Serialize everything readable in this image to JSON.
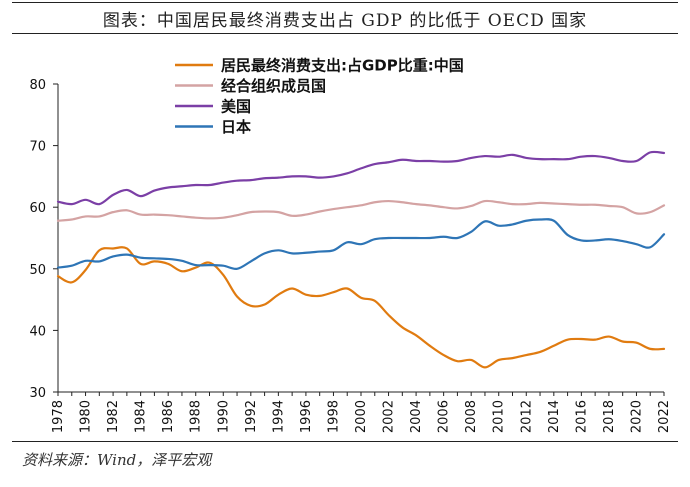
{
  "title": "图表：中国居民最终消费支出占 GDP 的比低于 OECD 国家",
  "source": "资料来源：Wind，泽平宏观",
  "chart_data": {
    "type": "line",
    "title": "图表：中国居民最终消费支出占 GDP 的比低于 OECD 国家",
    "xlabel": "",
    "ylabel": "",
    "ylim": [
      30,
      80
    ],
    "yticks": [
      30,
      40,
      50,
      60,
      70,
      80
    ],
    "xlim": [
      1978,
      2022
    ],
    "xticks": [
      1978,
      1980,
      1982,
      1984,
      1986,
      1988,
      1990,
      1992,
      1994,
      1996,
      1998,
      2000,
      2002,
      2004,
      2006,
      2008,
      2010,
      2012,
      2014,
      2016,
      2018,
      2020,
      2022
    ],
    "legend_position": "top-center",
    "x": [
      1978,
      1979,
      1980,
      1981,
      1982,
      1983,
      1984,
      1985,
      1986,
      1987,
      1988,
      1989,
      1990,
      1991,
      1992,
      1993,
      1994,
      1995,
      1996,
      1997,
      1998,
      1999,
      2000,
      2001,
      2002,
      2003,
      2004,
      2005,
      2006,
      2007,
      2008,
      2009,
      2010,
      2011,
      2012,
      2013,
      2014,
      2015,
      2016,
      2017,
      2018,
      2019,
      2020,
      2021,
      2022
    ],
    "series": [
      {
        "name": "居民最终消费支出:占GDP比重:中国",
        "color": "#E07B10",
        "values": [
          48.8,
          47.8,
          49.8,
          53.0,
          53.3,
          53.3,
          50.8,
          51.2,
          50.8,
          49.6,
          50.2,
          51.0,
          49.0,
          45.5,
          44.0,
          44.2,
          45.8,
          46.8,
          45.8,
          45.6,
          46.2,
          46.8,
          45.3,
          44.8,
          42.5,
          40.5,
          39.2,
          37.5,
          36.0,
          35.0,
          35.2,
          34.0,
          35.2,
          35.5,
          36.0,
          36.5,
          37.5,
          38.5,
          38.6,
          38.5,
          39.0,
          38.2,
          38.0,
          37.0,
          37.0
        ]
      },
      {
        "name": "经合组织成员国",
        "color": "#D4A3A3",
        "values": [
          57.8,
          58.0,
          58.5,
          58.5,
          59.2,
          59.5,
          58.8,
          58.8,
          58.7,
          58.5,
          58.3,
          58.2,
          58.3,
          58.7,
          59.2,
          59.3,
          59.2,
          58.6,
          58.8,
          59.3,
          59.7,
          60.0,
          60.3,
          60.8,
          61.0,
          60.8,
          60.5,
          60.3,
          60.0,
          59.8,
          60.2,
          61.0,
          60.8,
          60.5,
          60.5,
          60.7,
          60.6,
          60.5,
          60.4,
          60.4,
          60.2,
          60.0,
          59.0,
          59.2,
          60.3
        ]
      },
      {
        "name": "美国",
        "color": "#7B3FA6",
        "values": [
          60.9,
          60.5,
          61.2,
          60.5,
          62.0,
          62.8,
          61.8,
          62.7,
          63.2,
          63.4,
          63.6,
          63.6,
          64.0,
          64.3,
          64.4,
          64.7,
          64.8,
          65.0,
          65.0,
          64.8,
          65.0,
          65.5,
          66.3,
          67.0,
          67.3,
          67.7,
          67.5,
          67.5,
          67.4,
          67.5,
          68.0,
          68.3,
          68.2,
          68.5,
          68.0,
          67.8,
          67.8,
          67.8,
          68.2,
          68.3,
          68.0,
          67.5,
          67.5,
          68.9,
          68.8
        ]
      },
      {
        "name": "日本",
        "color": "#2E75B6",
        "values": [
          50.2,
          50.5,
          51.3,
          51.2,
          52.0,
          52.3,
          51.8,
          51.7,
          51.6,
          51.3,
          50.6,
          50.6,
          50.5,
          50.0,
          51.2,
          52.5,
          53.0,
          52.5,
          52.6,
          52.8,
          53.0,
          54.3,
          54.0,
          54.8,
          55.0,
          55.0,
          55.0,
          55.0,
          55.2,
          55.0,
          56.0,
          57.7,
          57.0,
          57.2,
          57.8,
          58.0,
          57.8,
          55.5,
          54.6,
          54.6,
          54.8,
          54.5,
          54.0,
          53.5,
          55.6
        ]
      }
    ]
  }
}
